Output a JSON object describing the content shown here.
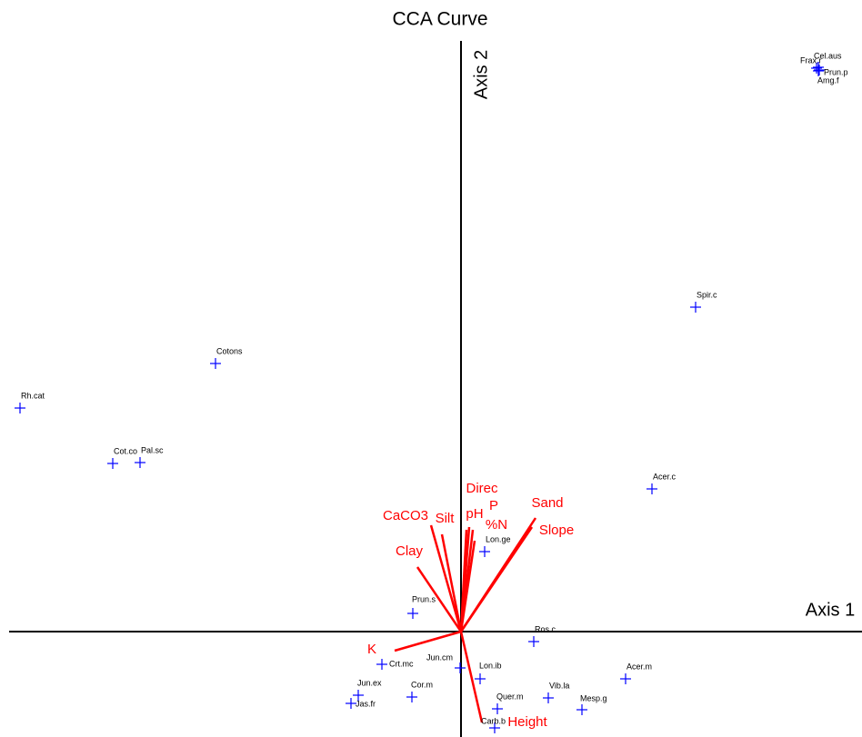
{
  "chart_data": {
    "type": "biplot",
    "title": "CCA Curve",
    "x_label": "Axis 1",
    "y_label": "Axis 2",
    "xlim": [
      -4.97,
      4.41
    ],
    "ylim": [
      -1.16,
      6.5
    ],
    "points": {
      "color": "#0000ff",
      "labels": [
        "Rh.cat",
        "Cotons",
        "Cot.co",
        "Pal.sc",
        "Spir.c",
        "Acer.c",
        "Frax.r",
        "Cel.aus",
        "Prun.p",
        "Amg.f",
        "Lon.ge",
        "Prun.s",
        "Ros.c",
        "Jun.cm",
        "Crt.mc",
        "Lon.ib",
        "Acer.m",
        "Jun.ex",
        "Jas.fr",
        "Cor.m",
        "Vib.la",
        "Quer.m",
        "Mesp.g",
        "Carb.b"
      ],
      "x": [
        -4.85,
        -2.7,
        -3.83,
        -3.53,
        2.58,
        2.1,
        3.91,
        3.93,
        3.94,
        3.93,
        0.26,
        -0.53,
        0.8,
        -0.01,
        -0.87,
        0.21,
        1.81,
        -1.13,
        -1.21,
        -0.54,
        0.96,
        0.4,
        1.33,
        0.37
      ],
      "y": [
        2.46,
        2.95,
        1.85,
        1.86,
        3.57,
        1.57,
        6.2,
        6.21,
        6.18,
        6.17,
        0.88,
        0.2,
        -0.11,
        -0.4,
        -0.36,
        -0.52,
        -0.52,
        -0.7,
        -0.79,
        -0.72,
        -0.73,
        -0.85,
        -0.86,
        -1.06
      ]
    },
    "vectors": {
      "color": "#ff0000",
      "labels": [
        "CaCO3",
        "Silt",
        "Clay",
        "pH",
        "Direc",
        "P",
        "%N",
        "Sand",
        "Slope",
        "K",
        "Height"
      ],
      "x": [
        -0.33,
        -0.21,
        -0.48,
        0.06,
        0.09,
        0.13,
        0.15,
        0.82,
        0.78,
        -0.73,
        0.23
      ],
      "y": [
        1.17,
        1.07,
        0.71,
        1.12,
        1.15,
        1.12,
        1.0,
        1.25,
        1.15,
        -0.21,
        -1.0
      ]
    }
  }
}
